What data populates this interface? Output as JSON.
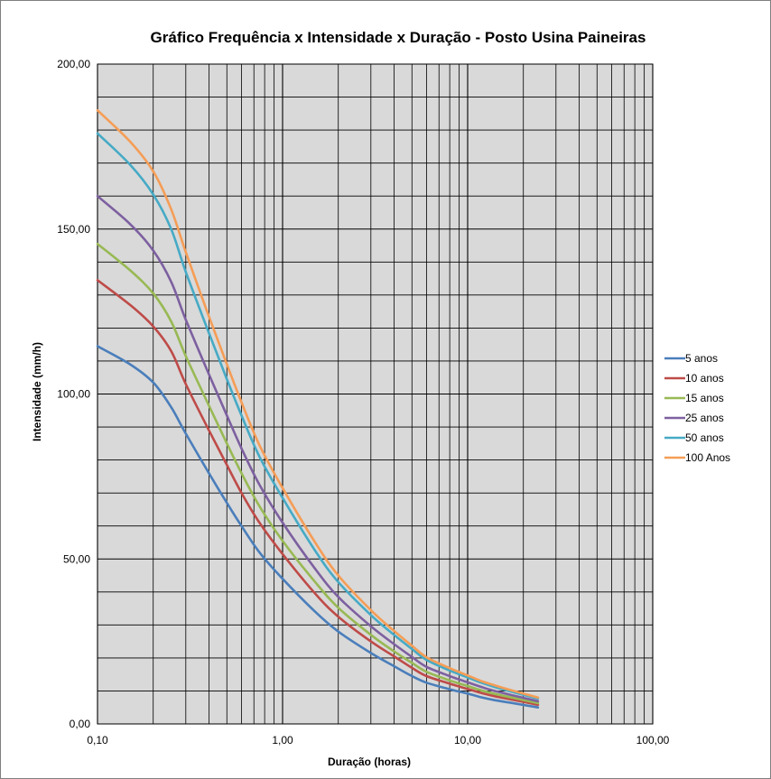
{
  "chart_data": {
    "type": "line",
    "title": "Gráfico Frequência x Intensidade x Duração - Posto Usina Paineiras",
    "xlabel": "Duração (horas)",
    "ylabel": "Intensidade (mm/h)",
    "x_scale": "log",
    "xlim": [
      0.1,
      100
    ],
    "ylim": [
      0,
      200
    ],
    "x_ticks": [
      0.1,
      1,
      10,
      100
    ],
    "x_tick_labels": [
      "0,10",
      "1,00",
      "10,00",
      "100,00"
    ],
    "y_ticks": [
      0,
      50,
      100,
      150,
      200
    ],
    "y_tick_labels": [
      "0,00",
      "50,00",
      "100,00",
      "150,00",
      "200,00"
    ],
    "grid": true,
    "legend_position": "right",
    "x": [
      0.1,
      0.15,
      0.2,
      0.25,
      0.3,
      0.4,
      0.5,
      0.6,
      0.75,
      1,
      1.5,
      2,
      3,
      4,
      5,
      6,
      8,
      10,
      12,
      14,
      18,
      24
    ],
    "series": [
      {
        "name": "5 anos",
        "color": "#4a7ebb",
        "values": [
          114.5,
          109,
          103.5,
          96,
          88,
          76,
          67,
          60,
          52,
          44,
          34,
          28,
          21.5,
          17.5,
          14.5,
          12.5,
          10.5,
          9.2,
          8,
          7.2,
          6.2,
          5.0
        ]
      },
      {
        "name": "10 anos",
        "color": "#be4b48",
        "values": [
          134.5,
          127,
          120.5,
          113,
          103,
          89,
          78.5,
          70,
          61,
          51.5,
          39.5,
          32.5,
          25,
          20.5,
          17,
          14.5,
          12.2,
          10.6,
          9.3,
          8.4,
          7.2,
          5.8
        ]
      },
      {
        "name": "15 anos",
        "color": "#98b954",
        "values": [
          145.5,
          137.5,
          130.5,
          122,
          111.5,
          96.5,
          85,
          76,
          66,
          55.5,
          43,
          35.2,
          27,
          22,
          18.5,
          15.8,
          13.2,
          11.5,
          10.1,
          9.1,
          7.8,
          6.3
        ]
      },
      {
        "name": "25 anos",
        "color": "#7d60a0",
        "values": [
          160,
          151.5,
          143.5,
          134,
          122.5,
          106,
          93.5,
          83.5,
          72.5,
          61,
          47,
          38.5,
          29.6,
          24.2,
          20.3,
          17.3,
          14.5,
          12.6,
          11.1,
          10,
          8.5,
          6.9
        ]
      },
      {
        "name": "50 anos",
        "color": "#46aac5",
        "values": [
          179,
          169.5,
          160.5,
          150,
          137,
          118.5,
          104.5,
          93.5,
          81,
          68.5,
          52.5,
          43,
          33,
          27,
          22.7,
          19.4,
          16.2,
          14.1,
          12.4,
          11.2,
          9.5,
          7.7
        ]
      },
      {
        "name": "100 Anos",
        "color": "#f59d56",
        "values": [
          186,
          176.5,
          167.5,
          156,
          143,
          123.5,
          109,
          97.5,
          84.5,
          71.5,
          55,
          45,
          34.5,
          28.2,
          23.7,
          20.2,
          16.9,
          14.7,
          12.9,
          11.7,
          9.9,
          8.0
        ]
      }
    ]
  }
}
